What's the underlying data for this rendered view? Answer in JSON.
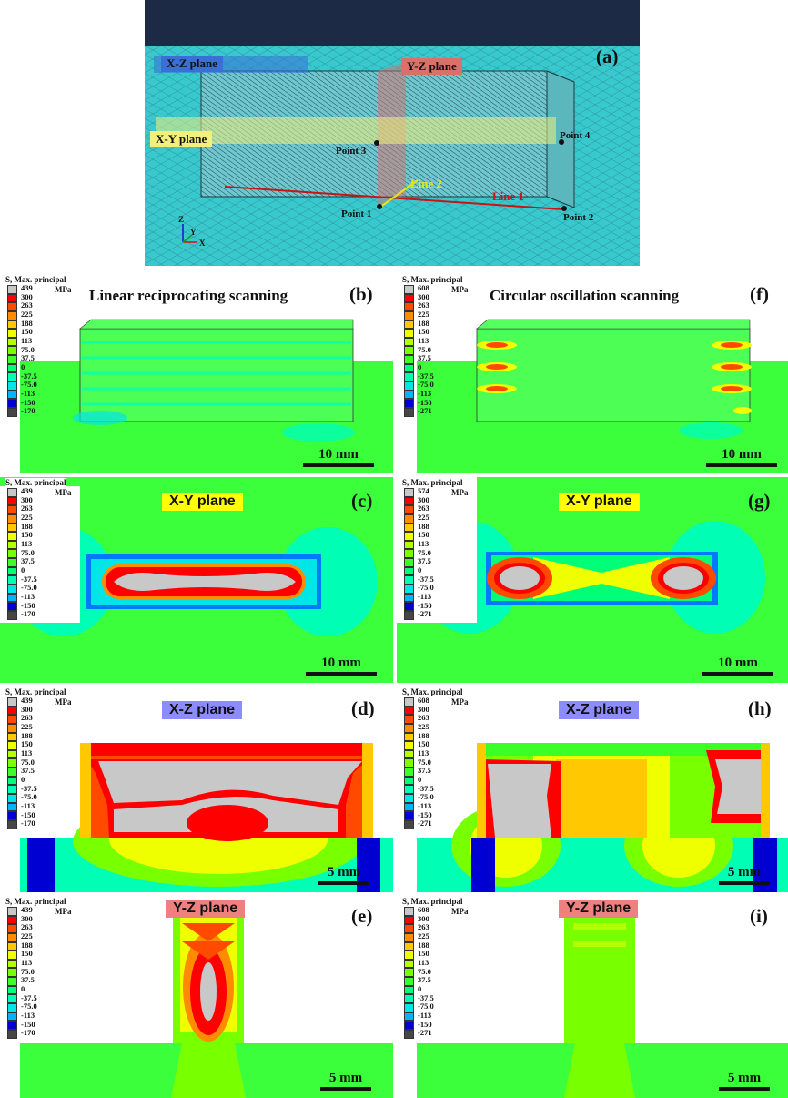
{
  "panel_a": {
    "letter": "(a)",
    "xz_label": "X-Z plane",
    "yz_label": "Y-Z plane",
    "xy_label": "X-Y plane",
    "points": [
      "Point 1",
      "Point 2",
      "Point 3",
      "Point 4"
    ],
    "lines": [
      "Line 1",
      "Line 2"
    ],
    "axes": [
      "Z",
      "Y",
      "X"
    ]
  },
  "legend": {
    "title": "S, Max. principal",
    "unit": "MPa",
    "colors": [
      "#c8c8c8",
      "#ff0000",
      "#ff4a00",
      "#ff8c00",
      "#ffc800",
      "#f0ff00",
      "#b4ff00",
      "#78ff00",
      "#3cff28",
      "#00ff78",
      "#00ffb4",
      "#00e6e6",
      "#00b4ff",
      "#0078ff",
      "#003cff",
      "#0000d2",
      "#464646"
    ],
    "labels_b": [
      "439",
      "300",
      "263",
      "225",
      "188",
      "150",
      "113",
      "75.0",
      "37.5",
      "0",
      "-37.5",
      "-75.0",
      "-113",
      "-150",
      "-170"
    ],
    "labels_f": [
      "608",
      "300",
      "263",
      "225",
      "188",
      "150",
      "113",
      "75.0",
      "37.5",
      "0",
      "-37.5",
      "-75.0",
      "-113",
      "-150",
      "-271"
    ],
    "labels_g": [
      "574",
      "300",
      "263",
      "225",
      "188",
      "150",
      "113",
      "75.0",
      "37.5",
      "0",
      "-37.5",
      "-75.0",
      "-113",
      "-150",
      "-271"
    ]
  },
  "panels": {
    "b": {
      "letter": "(b)",
      "title": "Linear reciprocating scanning",
      "scale": "10 mm"
    },
    "f": {
      "letter": "(f)",
      "title": "Circular oscillation scanning",
      "scale": "10 mm"
    },
    "c": {
      "letter": "(c)",
      "plane": "X-Y plane",
      "scale": "10 mm"
    },
    "g": {
      "letter": "(g)",
      "plane": "X-Y plane",
      "scale": "10 mm"
    },
    "d": {
      "letter": "(d)",
      "plane": "X-Z plane",
      "scale": "5 mm"
    },
    "h": {
      "letter": "(h)",
      "plane": "X-Z plane",
      "scale": "5 mm"
    },
    "e": {
      "letter": "(e)",
      "plane": "Y-Z plane",
      "scale": "5 mm"
    },
    "i": {
      "letter": "(i)",
      "plane": "Y-Z plane",
      "scale": "5 mm"
    }
  },
  "colors": {
    "xz_tag": "#3a6fd8",
    "yz_tag": "#d9706c",
    "xy_tag": "#f2f07a",
    "plane_xy": "#ffff00",
    "plane_xz": "#8c8cff",
    "plane_yz": "#f08080",
    "substrate": "#3cff3c",
    "mesh_bg": "#00c8c8"
  }
}
